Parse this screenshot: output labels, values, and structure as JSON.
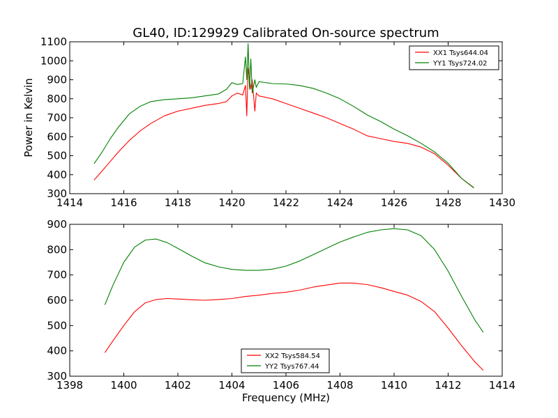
{
  "title": "GL40, ID:129929 Calibrated On-source spectrum",
  "colors": {
    "red": "#ff0000",
    "green": "#008000"
  },
  "chart_data": [
    {
      "type": "line",
      "xlim": [
        1414,
        1430
      ],
      "ylim": [
        300,
        1100
      ],
      "xticks": [
        1414,
        1416,
        1418,
        1420,
        1422,
        1424,
        1426,
        1428,
        1430
      ],
      "yticks": [
        300,
        400,
        500,
        600,
        700,
        800,
        900,
        1000,
        1100
      ],
      "xlabel": "",
      "ylabel": "Power in Kelvin",
      "legend_position": "top-right",
      "grid": false,
      "series": [
        {
          "name": "XX1 Tsys644.04",
          "color": "#ff0000",
          "x": [
            1414.9,
            1415.2,
            1415.5,
            1415.8,
            1416.2,
            1416.6,
            1417.0,
            1417.5,
            1418.0,
            1418.5,
            1419.0,
            1419.5,
            1419.8,
            1420.0,
            1420.2,
            1420.4,
            1420.5,
            1420.55,
            1420.6,
            1420.7,
            1420.75,
            1420.85,
            1420.9,
            1421.0,
            1421.5,
            1422.0,
            1422.5,
            1423.0,
            1423.5,
            1424.0,
            1424.5,
            1425.0,
            1425.5,
            1426.0,
            1426.5,
            1427.0,
            1427.5,
            1428.0,
            1428.5,
            1428.95
          ],
          "y": [
            372,
            420,
            470,
            520,
            580,
            630,
            670,
            710,
            735,
            750,
            765,
            775,
            785,
            815,
            830,
            820,
            870,
            710,
            960,
            850,
            900,
            735,
            830,
            815,
            800,
            775,
            750,
            725,
            700,
            670,
            640,
            605,
            590,
            575,
            565,
            545,
            510,
            450,
            380,
            332
          ]
        },
        {
          "name": "YY1 Tsys724.02",
          "color": "#008000",
          "x": [
            1414.9,
            1415.2,
            1415.5,
            1415.8,
            1416.2,
            1416.6,
            1417.0,
            1417.5,
            1418.0,
            1418.5,
            1419.0,
            1419.5,
            1419.8,
            1420.0,
            1420.2,
            1420.4,
            1420.5,
            1420.55,
            1420.6,
            1420.65,
            1420.7,
            1420.75,
            1420.85,
            1420.9,
            1421.0,
            1421.5,
            1422.0,
            1422.5,
            1423.0,
            1423.5,
            1424.0,
            1424.5,
            1425.0,
            1425.5,
            1426.0,
            1426.5,
            1427.0,
            1427.5,
            1428.0,
            1428.5,
            1428.95
          ],
          "y": [
            458,
            520,
            590,
            650,
            720,
            760,
            785,
            795,
            800,
            805,
            815,
            825,
            850,
            885,
            875,
            880,
            1020,
            900,
            1090,
            850,
            1010,
            830,
            900,
            860,
            890,
            880,
            878,
            870,
            855,
            830,
            800,
            760,
            715,
            680,
            640,
            605,
            565,
            520,
            460,
            380,
            330
          ]
        }
      ]
    },
    {
      "type": "line",
      "xlim": [
        1398,
        1414
      ],
      "ylim": [
        300,
        900
      ],
      "xticks": [
        1398,
        1400,
        1402,
        1404,
        1406,
        1408,
        1410,
        1412,
        1414
      ],
      "yticks": [
        300,
        400,
        500,
        600,
        700,
        800,
        900
      ],
      "xlabel": "Frequency (MHz)",
      "ylabel": "",
      "legend_position": "bottom-center",
      "grid": false,
      "series": [
        {
          "name": "XX2 Tsys584.54",
          "color": "#ff0000",
          "x": [
            1399.3,
            1399.6,
            1400.0,
            1400.4,
            1400.8,
            1401.2,
            1401.6,
            1402.0,
            1402.5,
            1403.0,
            1403.5,
            1404.0,
            1404.5,
            1405.0,
            1405.5,
            1406.0,
            1406.5,
            1407.0,
            1407.5,
            1408.0,
            1408.5,
            1409.0,
            1409.5,
            1410.0,
            1410.5,
            1411.0,
            1411.5,
            1412.0,
            1412.5,
            1413.0,
            1413.3
          ],
          "y": [
            393,
            440,
            500,
            555,
            590,
            603,
            607,
            605,
            602,
            600,
            603,
            607,
            615,
            620,
            627,
            632,
            640,
            652,
            660,
            668,
            668,
            662,
            650,
            635,
            620,
            595,
            555,
            490,
            420,
            355,
            323
          ]
        },
        {
          "name": "YY2 Tsys767.44",
          "color": "#008000",
          "x": [
            1399.3,
            1399.6,
            1400.0,
            1400.4,
            1400.8,
            1401.2,
            1401.6,
            1402.0,
            1402.5,
            1403.0,
            1403.5,
            1404.0,
            1404.5,
            1405.0,
            1405.5,
            1406.0,
            1406.5,
            1407.0,
            1407.5,
            1408.0,
            1408.5,
            1409.0,
            1409.5,
            1410.0,
            1410.5,
            1411.0,
            1411.5,
            1412.0,
            1412.5,
            1413.0,
            1413.3
          ],
          "y": [
            582,
            660,
            750,
            810,
            838,
            842,
            828,
            805,
            775,
            748,
            732,
            722,
            718,
            718,
            723,
            735,
            755,
            780,
            805,
            830,
            850,
            868,
            878,
            883,
            878,
            855,
            800,
            715,
            615,
            520,
            473
          ]
        }
      ]
    }
  ]
}
